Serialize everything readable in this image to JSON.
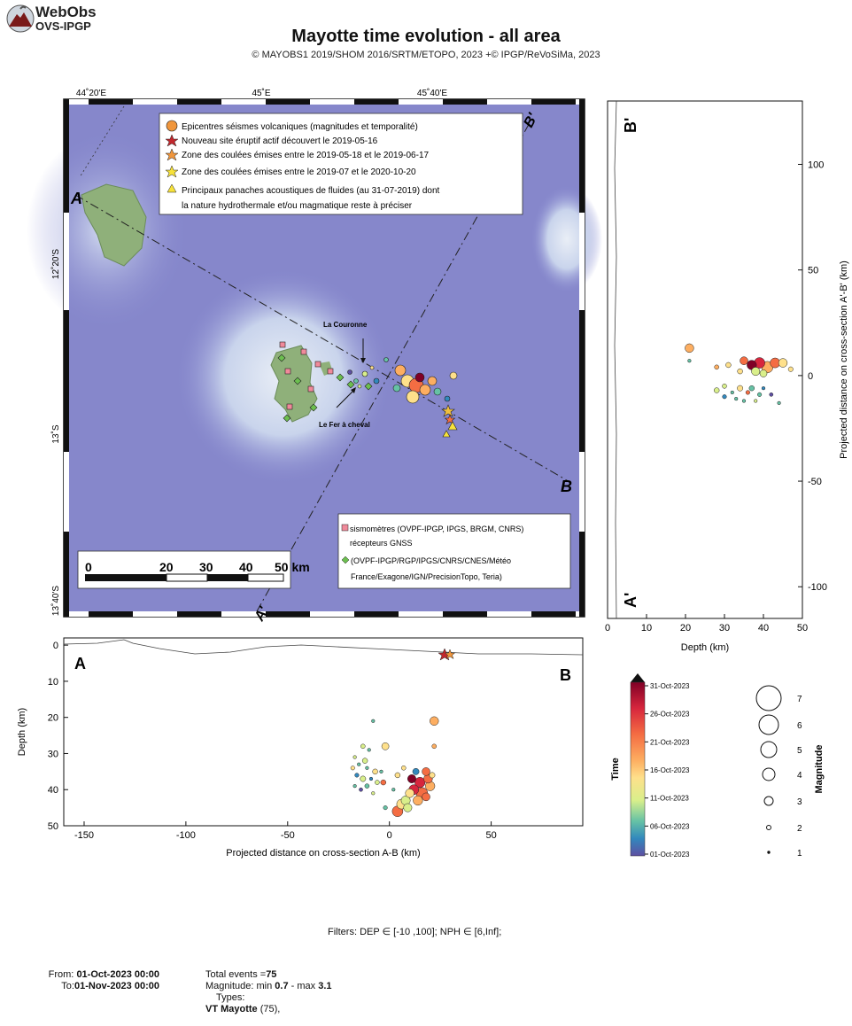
{
  "header": {
    "logo_line1": "WebObs",
    "logo_line2": "OVS-IPGP",
    "title": "Mayotte time evolution - all area",
    "subtitle": "© MAYOBS1 2019/SHOM 2016/SRTM/ETOPO, 2023 +© IPGP/ReVoSiMa, 2023"
  },
  "map": {
    "top_ticks": [
      "44˚20'E",
      "45˚E",
      "45˚40'E"
    ],
    "left_ticks": [
      "12˚20'S",
      "13˚S",
      "13˚40'S"
    ],
    "section_labels": {
      "A": "A",
      "B": "B",
      "A_prime": "A'",
      "B_prime": "B'"
    },
    "annotations": {
      "couronne": "La Couronne",
      "fer": "Le Fer à cheval"
    },
    "scalebar": {
      "ticks": [
        "0",
        "20",
        "30",
        "40",
        "50 km"
      ]
    },
    "legend": [
      {
        "symbol": "orange-circle",
        "text": "Epicentres séismes volcaniques (magnitudes et temporalité)"
      },
      {
        "symbol": "red-star",
        "text": "Nouveau site éruptif actif découvert le 2019-05-16"
      },
      {
        "symbol": "orange-star",
        "text": "Zone des coulées émises entre le 2019-05-18 et le 2019-06-17"
      },
      {
        "symbol": "yellow-star",
        "text": "Zone des coulées émises entre le 2019-07 et le 2020-10-20"
      },
      {
        "symbol": "yellow-triangle",
        "text": "Principaux panaches acoustiques de fluides (au 31-07-2019) dont"
      },
      {
        "symbol": "none",
        "text": "la nature hydrothermale et/ou magmatique reste à préciser"
      }
    ],
    "legend2": [
      {
        "symbol": "pink-square",
        "text": "sismomètres (OVPF-IPGP, IPGS, BRGM, CNRS)"
      },
      {
        "symbol": "none",
        "text": "récepteurs GNSS"
      },
      {
        "symbol": "green-diamond",
        "text": "(OVPF-IPGP/RGP/IPGS/CNRS/CNES/Météo"
      },
      {
        "symbol": "none",
        "text": "France/Exagone/IGN/PrecisionTopo, Teria)"
      }
    ],
    "colors": {
      "sea": "#7f7fc8",
      "shallow": "#dfe6f0",
      "land": "#8fb07a"
    }
  },
  "chart_data": [
    {
      "type": "scatter",
      "name_id": "cross-section-AB",
      "xlabel": "Projected distance on cross-section A-B (km)",
      "ylabel": "Depth (km)",
      "xlim": [
        -160,
        95
      ],
      "ylim": [
        50,
        -2
      ],
      "xticks": [
        "-150",
        "-100",
        "-50",
        "0",
        "50"
      ],
      "xtick_values": [
        -150,
        -100,
        -50,
        0,
        50
      ],
      "yticks": [
        "0",
        "10",
        "20",
        "30",
        "40",
        "50"
      ],
      "ytick_values": [
        0,
        10,
        20,
        30,
        40,
        50
      ],
      "corner_left": "A",
      "corner_right": "B",
      "points": [
        {
          "x": -8,
          "y": 21,
          "mag": 1,
          "t": 0.3
        },
        {
          "x": 22,
          "y": 21,
          "mag": 2.4,
          "t": 0.65
        },
        {
          "x": -2,
          "y": 28,
          "mag": 2,
          "t": 0.45
        },
        {
          "x": 22,
          "y": 28,
          "mag": 1.3,
          "t": 0.6
        },
        {
          "x": -13,
          "y": 28,
          "mag": 1.3,
          "t": 0.4
        },
        {
          "x": -10,
          "y": 29,
          "mag": 1,
          "t": 0.25
        },
        {
          "x": -17,
          "y": 31,
          "mag": 1,
          "t": 0.35
        },
        {
          "x": -12,
          "y": 32,
          "mag": 1.5,
          "t": 0.4
        },
        {
          "x": -15,
          "y": 33,
          "mag": 1,
          "t": 0.2
        },
        {
          "x": -18,
          "y": 34,
          "mag": 1.2,
          "t": 0.45
        },
        {
          "x": -11,
          "y": 34,
          "mag": 1,
          "t": 0.3
        },
        {
          "x": -7,
          "y": 35,
          "mag": 1.5,
          "t": 0.5
        },
        {
          "x": -4,
          "y": 35,
          "mag": 1,
          "t": 0.2
        },
        {
          "x": -16,
          "y": 36,
          "mag": 1.2,
          "t": 0.15
        },
        {
          "x": -13,
          "y": 37,
          "mag": 1.6,
          "t": 0.35
        },
        {
          "x": -9,
          "y": 37,
          "mag": 1,
          "t": 0.1
        },
        {
          "x": -6,
          "y": 38,
          "mag": 1.3,
          "t": 0.4
        },
        {
          "x": -3,
          "y": 38,
          "mag": 1.5,
          "t": 0.8
        },
        {
          "x": -17,
          "y": 39,
          "mag": 1,
          "t": 0.3
        },
        {
          "x": -11,
          "y": 39,
          "mag": 1.3,
          "t": 0.25
        },
        {
          "x": -14,
          "y": 40,
          "mag": 1.1,
          "t": 0.05
        },
        {
          "x": -8,
          "y": 41,
          "mag": 1,
          "t": 0.4
        },
        {
          "x": 4,
          "y": 36,
          "mag": 1.5,
          "t": 0.55
        },
        {
          "x": 7,
          "y": 34,
          "mag": 1.3,
          "t": 0.45
        },
        {
          "x": 2,
          "y": 40,
          "mag": 1,
          "t": 0.2
        },
        {
          "x": -2,
          "y": 45,
          "mag": 1.2,
          "t": 0.3
        },
        {
          "x": 18,
          "y": 35,
          "mag": 2.2,
          "t": 0.7
        },
        {
          "x": 19,
          "y": 37,
          "mag": 2.4,
          "t": 0.75
        },
        {
          "x": 11,
          "y": 37,
          "mag": 2.3,
          "t": 0.95
        },
        {
          "x": 15,
          "y": 38,
          "mag": 2.8,
          "t": 0.85
        },
        {
          "x": 20,
          "y": 39,
          "mag": 2.6,
          "t": 0.6
        },
        {
          "x": 12,
          "y": 40,
          "mag": 2.7,
          "t": 0.88
        },
        {
          "x": 16,
          "y": 41,
          "mag": 3.1,
          "t": 0.7
        },
        {
          "x": 10,
          "y": 41,
          "mag": 2.4,
          "t": 0.5
        },
        {
          "x": 8,
          "y": 43,
          "mag": 2.5,
          "t": 0.35
        },
        {
          "x": 14,
          "y": 43,
          "mag": 2.6,
          "t": 0.62
        },
        {
          "x": 6,
          "y": 44,
          "mag": 2.7,
          "t": 0.55
        },
        {
          "x": 4,
          "y": 46,
          "mag": 2.9,
          "t": 0.7
        },
        {
          "x": 9,
          "y": 45,
          "mag": 2.3,
          "t": 0.4
        },
        {
          "x": 18,
          "y": 42,
          "mag": 2.2,
          "t": 0.8
        },
        {
          "x": 13,
          "y": 35,
          "mag": 1.8,
          "t": 0.15
        },
        {
          "x": 21,
          "y": 36,
          "mag": 1.6,
          "t": 0.5
        }
      ]
    },
    {
      "type": "scatter",
      "name_id": "cross-section-A'B'",
      "xlabel": "Depth (km)",
      "ylabel": "Projected distance on cross-section A'-B' (km)",
      "xlim": [
        0,
        50
      ],
      "ylim": [
        -115,
        130
      ],
      "xticks": [
        "0",
        "10",
        "20",
        "30",
        "40",
        "50"
      ],
      "xtick_values": [
        0,
        10,
        20,
        30,
        40,
        50
      ],
      "yticks": [
        "100",
        "50",
        "0",
        "-50",
        "-100"
      ],
      "ytick_values": [
        100,
        50,
        0,
        -50,
        -100
      ],
      "corner_top": "B'",
      "corner_bottom": "A'",
      "points": [
        {
          "x": 21,
          "y": 13,
          "mag": 2.4,
          "t": 0.65
        },
        {
          "x": 21,
          "y": 7,
          "mag": 1,
          "t": 0.3
        },
        {
          "x": 28,
          "y": 4,
          "mag": 1.3,
          "t": 0.6
        },
        {
          "x": 31,
          "y": 5,
          "mag": 1.5,
          "t": 0.45
        },
        {
          "x": 35,
          "y": 7,
          "mag": 2.2,
          "t": 0.7
        },
        {
          "x": 37,
          "y": 5,
          "mag": 2.6,
          "t": 0.95
        },
        {
          "x": 39,
          "y": 6,
          "mag": 2.9,
          "t": 0.85
        },
        {
          "x": 41,
          "y": 4,
          "mag": 3.1,
          "t": 0.6
        },
        {
          "x": 43,
          "y": 6,
          "mag": 2.7,
          "t": 0.7
        },
        {
          "x": 45,
          "y": 6,
          "mag": 2.4,
          "t": 0.55
        },
        {
          "x": 38,
          "y": 2,
          "mag": 2.3,
          "t": 0.4
        },
        {
          "x": 40,
          "y": 1,
          "mag": 2,
          "t": 0.35
        },
        {
          "x": 34,
          "y": 2,
          "mag": 1.5,
          "t": 0.5
        },
        {
          "x": 47,
          "y": 3,
          "mag": 1.4,
          "t": 0.45
        },
        {
          "x": 28,
          "y": -7,
          "mag": 1.5,
          "t": 0.4
        },
        {
          "x": 30,
          "y": -5,
          "mag": 1.3,
          "t": 0.35
        },
        {
          "x": 32,
          "y": -8,
          "mag": 1,
          "t": 0.2
        },
        {
          "x": 34,
          "y": -6,
          "mag": 1.6,
          "t": 0.45
        },
        {
          "x": 36,
          "y": -8,
          "mag": 1.2,
          "t": 0.8
        },
        {
          "x": 37,
          "y": -6,
          "mag": 1.5,
          "t": 0.3
        },
        {
          "x": 39,
          "y": -9,
          "mag": 1.2,
          "t": 0.25
        },
        {
          "x": 40,
          "y": -6,
          "mag": 1,
          "t": 0.1
        },
        {
          "x": 38,
          "y": -12,
          "mag": 1,
          "t": 0.4
        },
        {
          "x": 42,
          "y": -9,
          "mag": 1.1,
          "t": 0.05
        },
        {
          "x": 35,
          "y": -12,
          "mag": 1,
          "t": 0.3
        },
        {
          "x": 30,
          "y": -10,
          "mag": 1.2,
          "t": 0.15
        },
        {
          "x": 44,
          "y": -13,
          "mag": 1,
          "t": 0.2
        },
        {
          "x": 33,
          "y": -11,
          "mag": 1,
          "t": 0.25
        }
      ]
    }
  ],
  "colorbar": {
    "title": "Time",
    "labels": [
      "31-Oct-2023",
      "26-Oct-2023",
      "21-Oct-2023",
      "16-Oct-2023",
      "11-Oct-2023",
      "06-Oct-2023",
      "01-Oct-2023"
    ],
    "colors": [
      "#800026",
      "#d7263d",
      "#f46d43",
      "#fdae61",
      "#fee08b",
      "#d9ef8b",
      "#66c2a5",
      "#3288bd",
      "#5e4fa2"
    ]
  },
  "magnitude_legend": {
    "title": "Magnitude",
    "labels": [
      "7",
      "6",
      "5",
      "4",
      "3",
      "2",
      "1"
    ]
  },
  "footer": {
    "filters_label": "Filters:",
    "filters_text": "DEP ∈ [-10 ,100]; NPH ∈ [6,Inf];",
    "from_label": "From:",
    "from_value": "01-Oct-2023 00:00",
    "to_label": "To:",
    "to_value": "01-Nov-2023 00:00",
    "total_label": "Total events =",
    "total_value": "75",
    "mag_label": "Magnitude: min",
    "mag_min": "0.7",
    "mag_sep": "- max",
    "mag_max": "3.1",
    "types_label": "Types:",
    "type_name": "VT Mayotte",
    "type_count": "(75),"
  }
}
